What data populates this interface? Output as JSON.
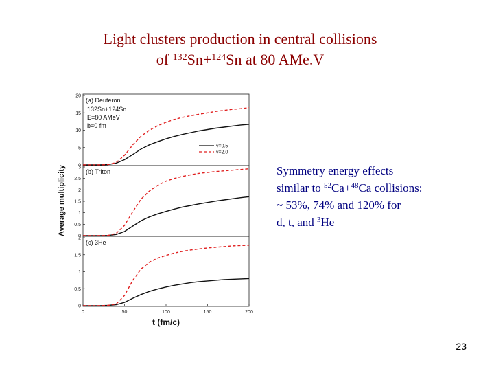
{
  "title": {
    "line1": "Light clusters production in central collisions",
    "line2_of": "of",
    "line2_mass1": "132",
    "line2_el1": "Sn+",
    "line2_mass2": "124",
    "line2_el2": "Sn at 80 AMe.V"
  },
  "note": {
    "l1": "Symmetry energy effects",
    "l2_pre": "similar to",
    "l2_m1": "52",
    "l2_e1": "Ca+",
    "l2_m2": "48",
    "l2_e2": "Ca collisions:",
    "l3": "~ 53%, 74% and 120% for",
    "l4_pre": "d, t, and",
    "l4_m": "3",
    "l4_e": "He"
  },
  "page_number": "23",
  "chart_data": {
    "type": "line",
    "xlabel": "t (fm/c)",
    "ylabel": "Average multiplicity",
    "xlim": [
      0,
      200
    ],
    "xticks": [
      0,
      50,
      100,
      150,
      200
    ],
    "x": [
      0,
      10,
      20,
      30,
      40,
      50,
      60,
      70,
      80,
      90,
      100,
      110,
      120,
      130,
      140,
      150,
      160,
      170,
      180,
      190,
      200
    ],
    "legend": [
      "γ=0.5",
      "γ=2.0"
    ],
    "series_colors": [
      "#111111",
      "#e02020"
    ],
    "panels": [
      {
        "label": "(a) Deuteron",
        "extra_text": [
          "132Sn+124Sn",
          "E=80 AMeV",
          "b=0 fm"
        ],
        "ylim": [
          0,
          20
        ],
        "yticks": [
          0,
          5,
          10,
          15,
          20
        ],
        "series": [
          {
            "name": "γ=0.5",
            "values": [
              0,
              0,
              0,
              0.1,
              0.5,
              1.5,
              3.0,
              4.6,
              5.8,
              6.7,
              7.5,
              8.2,
              8.8,
              9.3,
              9.8,
              10.2,
              10.6,
              10.9,
              11.2,
              11.5,
              11.7
            ]
          },
          {
            "name": "γ=2.0",
            "values": [
              0,
              0,
              0,
              0.1,
              0.7,
              2.8,
              5.8,
              8.3,
              10.0,
              11.3,
              12.3,
              13.1,
              13.7,
              14.2,
              14.6,
              15.0,
              15.4,
              15.7,
              16.0,
              16.2,
              16.5
            ]
          }
        ]
      },
      {
        "label": "(b) Triton",
        "extra_text": [],
        "ylim": [
          0,
          3.0
        ],
        "yticks": [
          0,
          0.5,
          1.0,
          1.5,
          2.0,
          2.5,
          3.0
        ],
        "series": [
          {
            "name": "γ=0.5",
            "values": [
              0,
              0,
              0,
              0.01,
              0.05,
              0.18,
              0.42,
              0.65,
              0.82,
              0.95,
              1.06,
              1.16,
              1.25,
              1.32,
              1.39,
              1.45,
              1.51,
              1.56,
              1.61,
              1.66,
              1.7
            ]
          },
          {
            "name": "γ=2.0",
            "values": [
              0,
              0,
              0,
              0.01,
              0.1,
              0.45,
              1.05,
              1.6,
              1.95,
              2.2,
              2.38,
              2.5,
              2.59,
              2.66,
              2.72,
              2.76,
              2.8,
              2.83,
              2.86,
              2.89,
              2.92
            ]
          }
        ]
      },
      {
        "label": "(c) 3He",
        "extra_text": [],
        "ylim": [
          0,
          2.0
        ],
        "yticks": [
          0,
          0.5,
          1.0,
          1.5,
          2.0
        ],
        "series": [
          {
            "name": "γ=0.5",
            "values": [
              0,
              0,
              0,
              0.01,
              0.03,
              0.1,
              0.22,
              0.33,
              0.42,
              0.49,
              0.55,
              0.6,
              0.64,
              0.68,
              0.71,
              0.73,
              0.75,
              0.77,
              0.78,
              0.79,
              0.8
            ]
          },
          {
            "name": "γ=2.0",
            "values": [
              0,
              0,
              0,
              0.01,
              0.05,
              0.3,
              0.75,
              1.08,
              1.28,
              1.4,
              1.48,
              1.55,
              1.6,
              1.64,
              1.67,
              1.7,
              1.72,
              1.74,
              1.76,
              1.77,
              1.78
            ]
          }
        ]
      }
    ]
  }
}
